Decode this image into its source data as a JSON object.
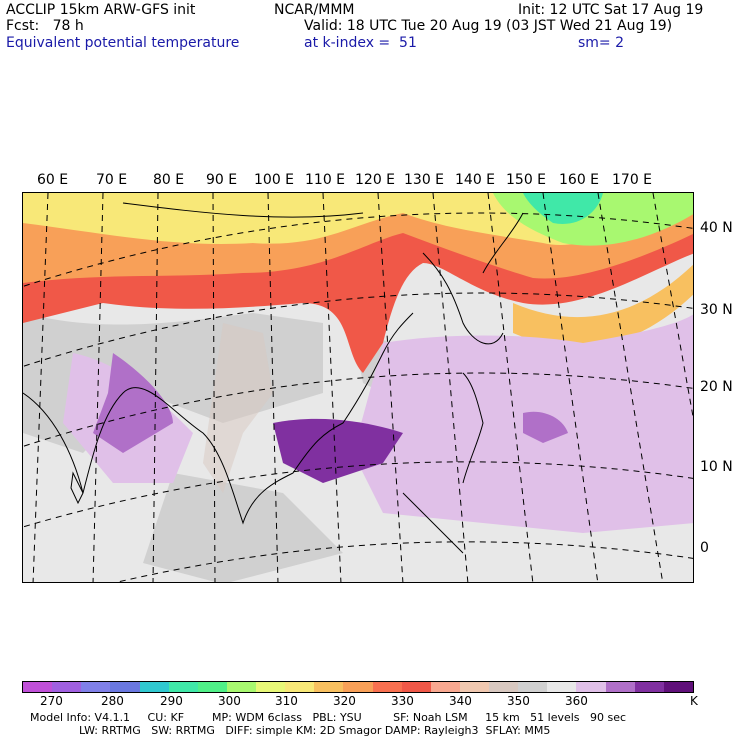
{
  "header": {
    "model": "ACCLIP 15km ARW-GFS init",
    "center": "NCAR/MMM",
    "init": "Init: 12 UTC Sat 17 Aug 19",
    "fcst": "Fcst:   78 h",
    "valid": "Valid: 18 UTC Tue 20 Aug 19 (03 JST Wed 21 Aug 19)",
    "field": "Equivalent potential temperature",
    "kindex": "at k-index =  51",
    "smooth": "sm= 2"
  },
  "lon_labels": [
    "60 E",
    "70 E",
    "80 E",
    "90 E",
    "100 E",
    "110 E",
    "120 E",
    "130 E",
    "140 E",
    "150 E",
    "160 E",
    "170 E"
  ],
  "lat_labels": [
    "40 N",
    "30 N",
    "20 N",
    "10 N",
    "0"
  ],
  "colorbar": {
    "colors": [
      "#c050d8",
      "#a060e0",
      "#8080e8",
      "#6a78e0",
      "#30c8d0",
      "#40e8a8",
      "#50f088",
      "#a8f870",
      "#e8f878",
      "#f8e878",
      "#f8c060",
      "#f8a058",
      "#f87050",
      "#f05848",
      "#f8a890",
      "#f0c8b0",
      "#d8c8c0",
      "#d0d0d0",
      "#e8e8e8",
      "#e0c0e8",
      "#b070c8",
      "#8030a0",
      "#60107a"
    ],
    "ticks": [
      "270",
      "280",
      "290",
      "300",
      "310",
      "320",
      "330",
      "340",
      "350",
      "360"
    ],
    "unit": "K"
  },
  "footer": {
    "line1": "Model Info: V4.1.1     CU: KF        MP: WDM 6class   PBL: YSU         SF: Noah LSM     15 km   51 levels   90 sec",
    "line2": "              LW: RRTMG   SW: RRTMG   DIFF: simple KM: 2D Smagor DAMP: Rayleigh3  SFLAY: MM5"
  }
}
